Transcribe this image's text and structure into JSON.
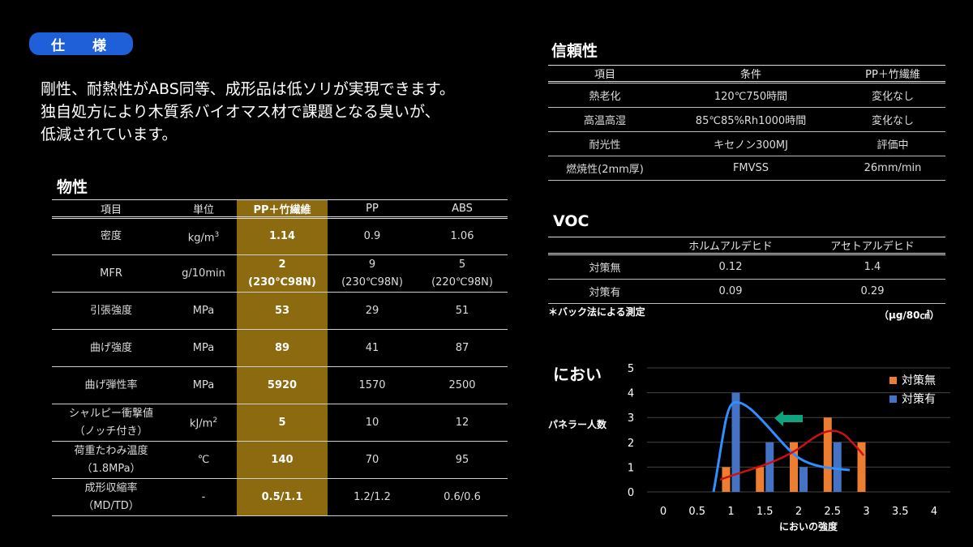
{
  "spec_badge": "仕 様",
  "intro": [
    "剛性、耐熱性がABS同等、成形品は低ソリが実現できます。",
    "独自処方により木質系バイオマス材で課題となる臭いが、",
    "低減されています。"
  ],
  "properties": {
    "title": "物性",
    "headers": [
      "項目",
      "単位",
      "PP＋竹繊維",
      "PP",
      "ABS"
    ],
    "rows": [
      {
        "item": "密度",
        "unit": "kg/m",
        "unit_sup": "3",
        "bamboo": "1.14",
        "pp": "0.9",
        "abs": "1.06"
      },
      {
        "item": "MFR",
        "unit": "g/10min",
        "unit_sup": "",
        "bamboo": "2",
        "bamboo_sub": "(230℃98N)",
        "pp": "9",
        "pp_sub": "(230℃98N)",
        "abs": "5",
        "abs_sub": "(220℃98N)"
      },
      {
        "item": "引張強度",
        "unit": "MPa",
        "unit_sup": "",
        "bamboo": "53",
        "pp": "29",
        "abs": "51"
      },
      {
        "item": "曲げ強度",
        "unit": "MPa",
        "unit_sup": "",
        "bamboo": "89",
        "pp": "41",
        "abs": "87"
      },
      {
        "item": "曲げ弾性率",
        "unit": "MPa",
        "unit_sup": "",
        "bamboo": "5920",
        "pp": "1570",
        "abs": "2500"
      },
      {
        "item": "シャルピー衝撃値",
        "item_sub": "（ノッチ付き）",
        "unit": "kJ/m",
        "unit_sup": "2",
        "bamboo": "5",
        "pp": "10",
        "abs": "12"
      },
      {
        "item": "荷重たわみ温度",
        "item_sub": "（1.8MPa）",
        "unit": "℃",
        "unit_sup": "",
        "bamboo": "140",
        "pp": "70",
        "abs": "95"
      },
      {
        "item": "成形収縮率",
        "item_sub": "（MD/TD）",
        "unit": "-",
        "unit_sup": "",
        "bamboo": "0.5/1.1",
        "pp": "1.2/1.2",
        "abs": "0.6/0.6"
      }
    ]
  },
  "reliability": {
    "title": "信頼性",
    "headers": [
      "項目",
      "条件",
      "PP＋竹繊維"
    ],
    "rows": [
      [
        "熱老化",
        "120℃750時間",
        "変化なし"
      ],
      [
        "高温高湿",
        "85℃85%Rh1000時間",
        "変化なし"
      ],
      [
        "耐光性",
        "キセノン300MJ",
        "評価中"
      ],
      [
        "燃焼性(2mm厚)",
        "FMVSS",
        "26mm/min"
      ]
    ]
  },
  "voc": {
    "title": "VOC",
    "headers": [
      "",
      "ホルムアルデヒド",
      "アセトアルデヒド"
    ],
    "rows": [
      [
        "対策無",
        "0.12",
        "1.4"
      ],
      [
        "対策有",
        "0.09",
        "0.29"
      ]
    ],
    "note": "＊バック法による測定",
    "unit": "（μg/80㎠）"
  },
  "chart_data": {
    "type": "bar",
    "title": "におい",
    "xlabel": "においの強度",
    "ylabel": "パネラー人数",
    "x": [
      0,
      0.5,
      1,
      1.5,
      2,
      2.5,
      3,
      3.5,
      4
    ],
    "ylim": [
      0,
      5
    ],
    "yticks": [
      0,
      1,
      2,
      3,
      4,
      5
    ],
    "legend_position": "top-right",
    "series": [
      {
        "name": "対策無",
        "color": "#ed7d31",
        "x": [
          1,
          1.5,
          2,
          2.5,
          3
        ],
        "values": [
          1,
          1,
          2,
          3,
          2
        ]
      },
      {
        "name": "対策有",
        "color": "#4472c4",
        "x": [
          1,
          1.5,
          2,
          2.5
        ],
        "values": [
          4,
          2,
          1,
          2
        ]
      }
    ]
  },
  "colors": {
    "accent_blue": "#1f5fd8",
    "highlight": "#8b6a10",
    "arrow": "#0fa37f"
  }
}
